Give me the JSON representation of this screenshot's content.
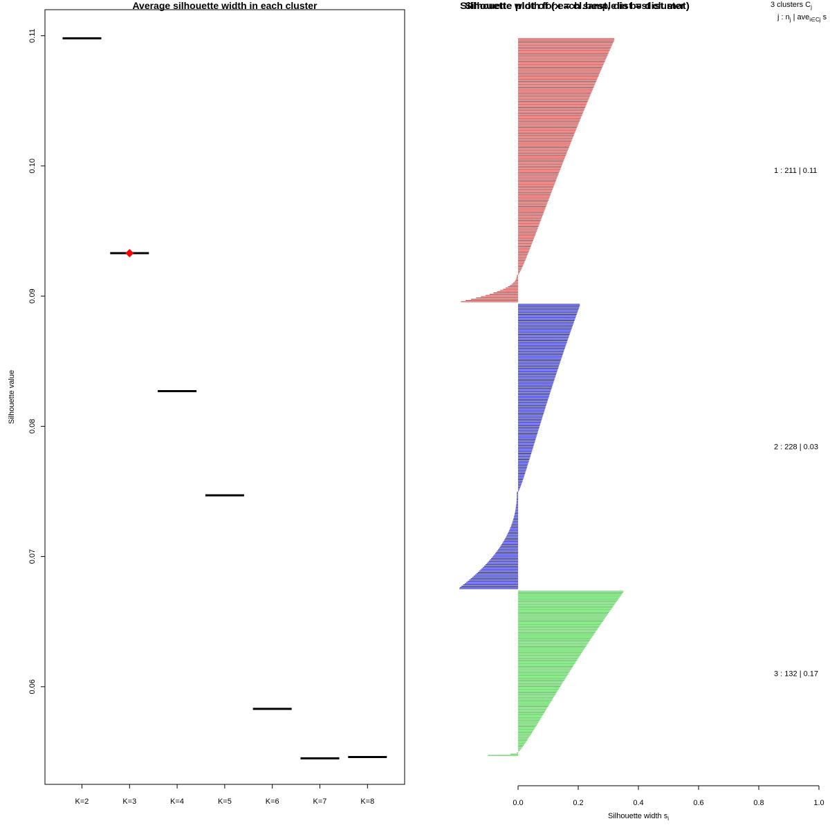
{
  "chart_data": [
    {
      "type": "scatter",
      "title": "Average silhouette width in each cluster",
      "xlabel": "",
      "ylabel": "Silhouette value",
      "categories": [
        "K=2",
        "K=3",
        "K=4",
        "K=5",
        "K=6",
        "K=7",
        "K=8"
      ],
      "values": [
        0.1098,
        0.0933,
        0.0827,
        0.0747,
        0.0583,
        0.0545,
        0.0546
      ],
      "best_index": 1,
      "best_color": "#ff0000",
      "ylim": [
        0.0525,
        0.112
      ],
      "y_ticks": [
        0.06,
        0.07,
        0.08,
        0.09,
        0.1,
        0.11
      ],
      "y_tick_labels": [
        "0.06",
        "0.07",
        "0.08",
        "0.09",
        "0.10",
        "0.11"
      ]
    },
    {
      "type": "bar",
      "orientation": "horizontal",
      "title": "Silhouette width for each sample in best cluster",
      "title_overlap": "Silhouette plot of (x = cl.best, dist = dist.mat)",
      "xlabel": "Silhouette width s",
      "xlabel_sub": "i",
      "xlim": [
        0,
        1.0
      ],
      "x_ticks": [
        0.0,
        0.2,
        0.4,
        0.6,
        0.8,
        1.0
      ],
      "x_tick_labels": [
        "0.0",
        "0.2",
        "0.4",
        "0.6",
        "0.8",
        "1.0"
      ],
      "legend_header": {
        "line1": "3  clusters  C",
        "line1_sub": "j",
        "line2": "j :  n",
        "line2_sub": "j",
        "line2_rest": " | ave",
        "line2_sub2": "i∈Cj",
        "line2_tail": "  s"
      },
      "clusters": [
        {
          "id": 1,
          "n": 211,
          "ave": 0.11,
          "label": "1 :   211  |  0.11",
          "color": "#cd2626",
          "max": 0.32,
          "min": -0.19,
          "neg_count": 22
        },
        {
          "id": 2,
          "n": 228,
          "ave": 0.03,
          "label": "2 :   228  |  0.03",
          "color": "#0000cd",
          "max": 0.205,
          "min": -0.195,
          "neg_count": 78
        },
        {
          "id": 3,
          "n": 132,
          "ave": 0.17,
          "label": "3 :   132  |  0.17",
          "color": "#2ecc2e",
          "max": 0.35,
          "min": -0.1,
          "neg_count": 3
        }
      ]
    }
  ]
}
